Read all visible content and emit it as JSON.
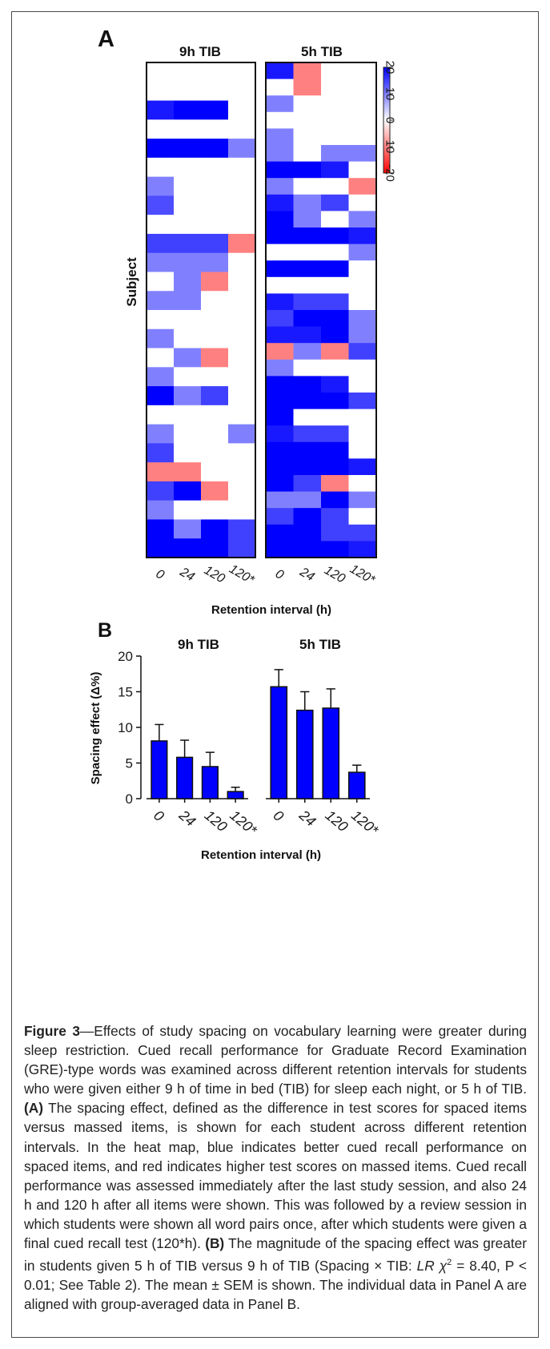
{
  "chart_data": [
    {
      "panel": "A",
      "type": "heatmap",
      "ylabel": "Subject",
      "xlabel": "Retention interval (h)",
      "categories": [
        "0",
        "24",
        "120",
        "120*"
      ],
      "colorbar": {
        "ticks": [
          "20",
          "10",
          "0",
          "10",
          "-20"
        ],
        "min": -20,
        "max": 20,
        "colors": {
          "max": "#0000ff",
          "mid": "#ffffff",
          "min": "#ff0000"
        }
      },
      "panels": [
        {
          "title": "9h TIB",
          "rows": [
            [
              0,
              0,
              0,
              0
            ],
            [
              0,
              0,
              0,
              0
            ],
            [
              18,
              20,
              20,
              0
            ],
            [
              0,
              0,
              0,
              0
            ],
            [
              20,
              20,
              20,
              10
            ],
            [
              0,
              0,
              0,
              0
            ],
            [
              10,
              0,
              0,
              0
            ],
            [
              14,
              0,
              0,
              0
            ],
            [
              0,
              0,
              0,
              0
            ],
            [
              15,
              15,
              15,
              -10
            ],
            [
              10,
              10,
              10,
              0
            ],
            [
              0,
              10,
              -10,
              0
            ],
            [
              10,
              10,
              0,
              0
            ],
            [
              0,
              0,
              0,
              0
            ],
            [
              10,
              0,
              0,
              0
            ],
            [
              0,
              10,
              -10,
              0
            ],
            [
              10,
              0,
              0,
              0
            ],
            [
              20,
              10,
              15,
              0
            ],
            [
              0,
              0,
              0,
              0
            ],
            [
              10,
              0,
              0,
              10
            ],
            [
              15,
              0,
              0,
              0
            ],
            [
              -10,
              -10,
              0,
              0
            ],
            [
              15,
              20,
              -10,
              0
            ],
            [
              10,
              0,
              0,
              0
            ],
            [
              20,
              10,
              20,
              15
            ],
            [
              20,
              20,
              20,
              15
            ]
          ]
        },
        {
          "title": "5h TIB",
          "rows": [
            [
              18,
              -10,
              0,
              0
            ],
            [
              0,
              -10,
              0,
              0
            ],
            [
              10,
              0,
              0,
              0
            ],
            [
              0,
              0,
              0,
              0
            ],
            [
              10,
              0,
              0,
              0
            ],
            [
              10,
              0,
              10,
              10
            ],
            [
              20,
              20,
              18,
              0
            ],
            [
              10,
              0,
              0,
              -10
            ],
            [
              18,
              10,
              15,
              0
            ],
            [
              20,
              10,
              0,
              10
            ],
            [
              20,
              20,
              20,
              18
            ],
            [
              0,
              0,
              0,
              10
            ],
            [
              20,
              20,
              20,
              0
            ],
            [
              0,
              0,
              0,
              0
            ],
            [
              18,
              15,
              15,
              0
            ],
            [
              15,
              20,
              20,
              10
            ],
            [
              18,
              18,
              20,
              10
            ],
            [
              -10,
              10,
              -10,
              15
            ],
            [
              10,
              0,
              0,
              0
            ],
            [
              20,
              20,
              18,
              0
            ],
            [
              20,
              20,
              20,
              15
            ],
            [
              20,
              0,
              0,
              0
            ],
            [
              18,
              15,
              15,
              0
            ],
            [
              20,
              20,
              20,
              0
            ],
            [
              20,
              20,
              20,
              18
            ],
            [
              20,
              15,
              -10,
              0
            ],
            [
              10,
              10,
              20,
              10
            ],
            [
              15,
              20,
              15,
              0
            ],
            [
              20,
              20,
              15,
              15
            ],
            [
              20,
              20,
              20,
              18
            ]
          ]
        }
      ]
    },
    {
      "panel": "B",
      "type": "bar",
      "ylabel": "Spacing effect (Δ%)",
      "xlabel": "Retention interval (h)",
      "ylim": [
        0,
        20
      ],
      "yticks": [
        "0",
        "5",
        "10",
        "15",
        "20"
      ],
      "categories": [
        "0",
        "24",
        "120",
        "120*"
      ],
      "bar_color": "#0000ff",
      "series": [
        {
          "name": "9h TIB",
          "values": [
            8.1,
            5.8,
            4.5,
            1.0
          ],
          "sem": [
            2.3,
            2.4,
            2.0,
            0.6
          ]
        },
        {
          "name": "5h TIB",
          "values": [
            15.7,
            12.4,
            12.7,
            3.7
          ],
          "sem": [
            2.4,
            2.6,
            2.7,
            1.0
          ]
        }
      ]
    }
  ],
  "figure": {
    "panel_a_label": "A",
    "panel_b_label": "B"
  },
  "caption": {
    "figure_label": "Figure 3",
    "intro": "—Effects of study spacing on vocabulary learning were greater during sleep restriction. Cued recall performance for Graduate Record Examination (GRE)-type words was examined across different retention intervals for students who were given either 9 h of time in bed (TIB) for sleep each night, or 5 h of TIB.",
    "panel_a_tag": "(A)",
    "panel_a_text": "The spacing effect, defined as the difference in test scores for spaced items versus massed items, is shown for each student across different retention intervals. In the heat map, blue indicates better cued recall performance on spaced items, and red indicates higher test scores on massed items. Cued recall performance was assessed immediately after the last study session, and also 24 h and 120 h after all items were shown. This was followed by a review session in which students were shown all word pairs once, after which students were given a final cued recall test (120*h).",
    "panel_b_tag": "(B)",
    "panel_b_text_1": "The magnitude of the spacing effect was greater in students given 5 h of TIB versus 9 h of TIB (Spacing × TIB:",
    "stat_lr": "LR χ",
    "stat_sup": "2",
    "panel_b_text_2": "= 8.40, P < 0.01; See Table 2). The mean ± SEM is shown. The individual data in Panel A are aligned with group-averaged data in Panel B."
  }
}
